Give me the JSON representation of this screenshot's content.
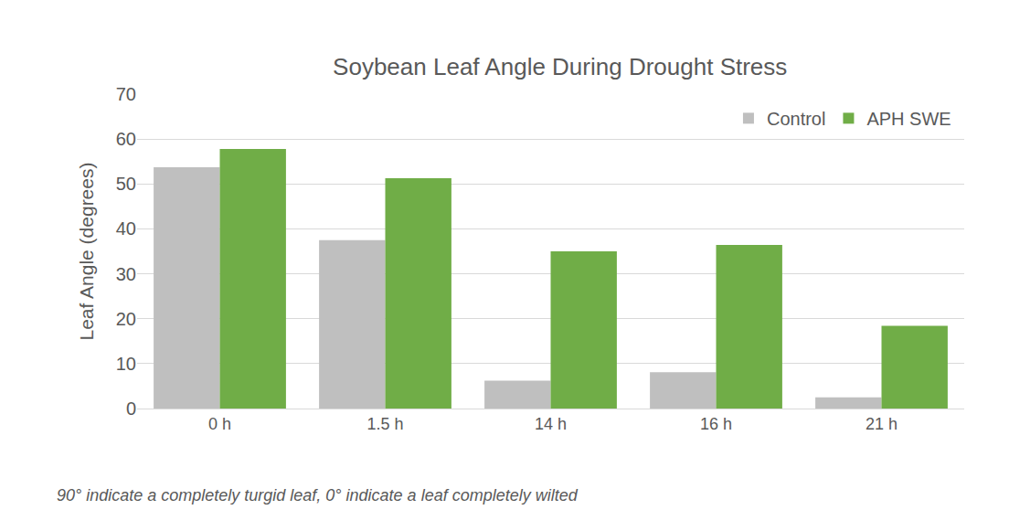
{
  "chart_data": {
    "type": "bar",
    "title": "Soybean Leaf Angle During Drought Stress",
    "y_label": "Leaf Angle (degrees)",
    "annotations": [
      "90° indicate a completely turgid leaf, 0° indicate a leaf completely wilted"
    ],
    "categories": [
      "0 h",
      "1.5 h",
      "14 h",
      "16 h",
      "21 h"
    ],
    "series": [
      {
        "name": "Control",
        "color": "#bfbfbf",
        "values": [
          53.7,
          37.5,
          6.2,
          8.1,
          2.5
        ]
      },
      {
        "name": "APH SWE",
        "color": "#70ad47",
        "values": [
          57.8,
          51.3,
          35.0,
          36.4,
          18.4
        ]
      }
    ],
    "ylim": [
      0,
      70
    ],
    "yticks": [
      0,
      10,
      20,
      30,
      40,
      50,
      60,
      70
    ],
    "grid": true,
    "legend": "top right"
  }
}
